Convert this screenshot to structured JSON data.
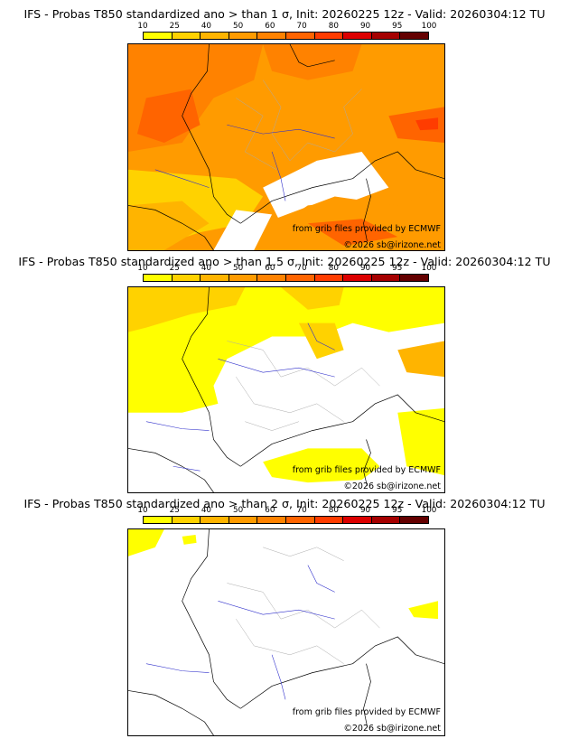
{
  "colorbar": {
    "ticks": [
      "10",
      "25",
      "40",
      "50",
      "60",
      "70",
      "80",
      "90",
      "95",
      "100"
    ],
    "colors": [
      "#ffff00",
      "#ffd200",
      "#ffb400",
      "#ff9b00",
      "#ff8200",
      "#ff6400",
      "#ff3c00",
      "#dc0000",
      "#a50000",
      "#640000"
    ]
  },
  "panels": [
    {
      "title": "IFS - Probas T850  standardized ano > than 1 σ, Init: 20260225 12z - Valid: 20260304:12 TU",
      "credit_source": "from grib files provided by ECMWF",
      "credit_copyright": "©2026 sb@irizone.net"
    },
    {
      "title": "IFS - Probas T850  standardized ano > than 1.5 σ, Init: 20260225 12z - Valid: 20260304:12 TU",
      "credit_source": "from grib files provided by ECMWF",
      "credit_copyright": "©2026 sb@irizone.net"
    },
    {
      "title": "IFS - Probas T850  standardized ano > than 2 σ, Init: 20260225 12z - Valid: 20260304:12 TU",
      "credit_source": "from grib files provided by ECMWF",
      "credit_copyright": "©2026 sb@irizone.net"
    }
  ]
}
